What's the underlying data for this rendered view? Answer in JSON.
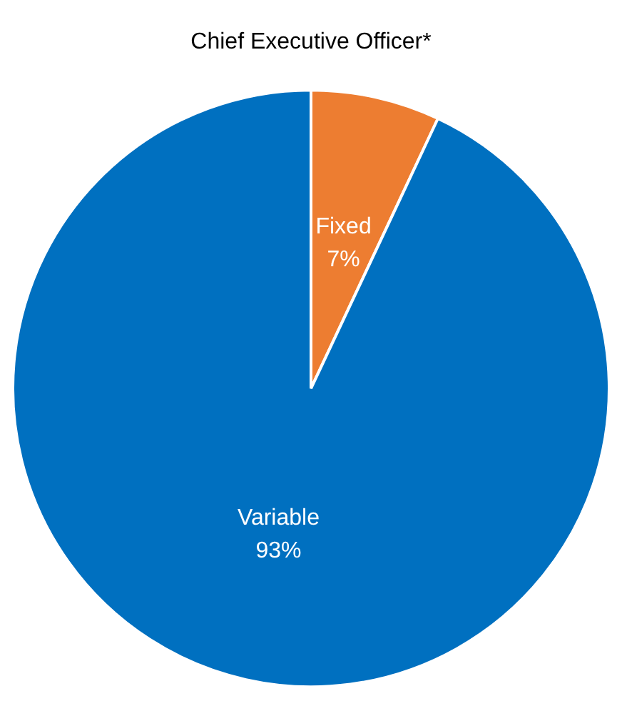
{
  "chart_data": {
    "type": "pie",
    "title": "Chief Executive Officer*",
    "categories": [
      "Fixed",
      "Variable"
    ],
    "values": [
      7,
      93
    ],
    "colors": [
      "#ed7d31",
      "#0070c0"
    ],
    "value_labels": [
      "7%",
      "93%"
    ]
  }
}
